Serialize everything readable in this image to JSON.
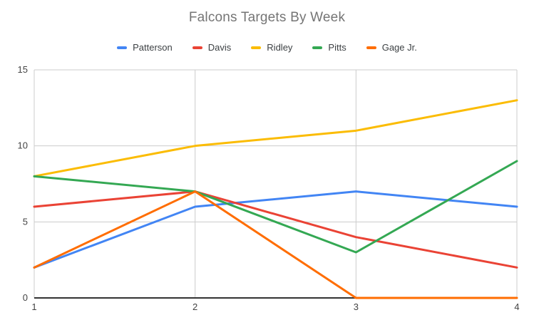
{
  "chart_data": {
    "type": "line",
    "title": "Falcons Targets By Week",
    "x": [
      1,
      2,
      3,
      4
    ],
    "xticks": [
      1,
      2,
      3,
      4
    ],
    "yticks": [
      0,
      5,
      10,
      15
    ],
    "xlim": [
      1,
      4
    ],
    "ylim": [
      0,
      15
    ],
    "grid": true,
    "legend_position": "top",
    "series": [
      {
        "name": "Patterson",
        "color": "#4285f4",
        "values": [
          2,
          6,
          7,
          6
        ]
      },
      {
        "name": "Davis",
        "color": "#ea4335",
        "values": [
          6,
          7,
          4,
          2
        ]
      },
      {
        "name": "Ridley",
        "color": "#fbbc04",
        "values": [
          8,
          10,
          11,
          13
        ]
      },
      {
        "name": "Pitts",
        "color": "#34a853",
        "values": [
          8,
          7,
          3,
          9
        ]
      },
      {
        "name": "Gage Jr.",
        "color": "#ff6d01",
        "values": [
          2,
          7,
          0,
          0
        ]
      }
    ]
  },
  "colors": {
    "background": "#ffffff",
    "gridline": "#cccccc",
    "axis_line": "#333333",
    "title_text": "#757575",
    "legend_text": "#3c4043",
    "tick_text": "#444444"
  }
}
